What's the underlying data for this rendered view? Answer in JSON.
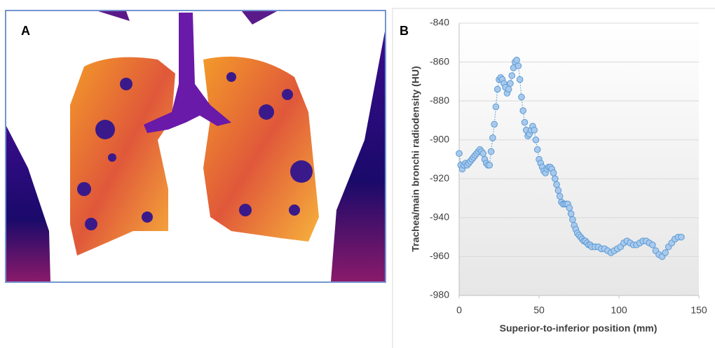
{
  "panel_labels": [
    "A",
    "B"
  ],
  "chart_data": {
    "type": "scatter",
    "x_label": "Superior-to-inferior position (mm)",
    "y_label": "Trachea/main bronchi radiodensity (HU)",
    "xlim": [
      0,
      150
    ],
    "xticks": [
      0,
      50,
      100,
      150
    ],
    "ylim": [
      -980,
      -840
    ],
    "yticks": [
      -980,
      -960,
      -940,
      -920,
      -900,
      -880,
      -860,
      -840
    ],
    "grid": true,
    "color": "#5b9bd5",
    "x": [
      0,
      1,
      2,
      3,
      4,
      5,
      6,
      7,
      8,
      9,
      10,
      11,
      12,
      13,
      14,
      15,
      16,
      17,
      18,
      19,
      20,
      21,
      22,
      23,
      24,
      25,
      26,
      27,
      28,
      29,
      30,
      31,
      32,
      33,
      34,
      35,
      36,
      37,
      38,
      39,
      40,
      41,
      42,
      43,
      44,
      45,
      46,
      47,
      48,
      49,
      50,
      51,
      52,
      53,
      54,
      55,
      56,
      57,
      58,
      59,
      60,
      61,
      62,
      63,
      64,
      65,
      66,
      67,
      68,
      69,
      70,
      71,
      72,
      73,
      74,
      75,
      76,
      77,
      78,
      79,
      80,
      81,
      82,
      83,
      85,
      87,
      89,
      91,
      93,
      95,
      97,
      99,
      101,
      103,
      105,
      107,
      109,
      111,
      113,
      115,
      117,
      119,
      121,
      123,
      125,
      127,
      129,
      131,
      133,
      135,
      137,
      139
    ],
    "y": [
      -907,
      -913,
      -915,
      -913,
      -912,
      -913,
      -912,
      -911,
      -910,
      -909,
      -908,
      -907,
      -906,
      -905,
      -906,
      -907,
      -910,
      -912,
      -913,
      -913,
      -906,
      -899,
      -892,
      -883,
      -874,
      -869,
      -868,
      -869,
      -871,
      -873,
      -876,
      -874,
      -871,
      -867,
      -863,
      -860,
      -859,
      -862,
      -869,
      -878,
      -885,
      -891,
      -895,
      -898,
      -897,
      -895,
      -893,
      -895,
      -900,
      -905,
      -910,
      -912,
      -914,
      -916,
      -917,
      -915,
      -914,
      -914,
      -915,
      -917,
      -920,
      -923,
      -926,
      -929,
      -932,
      -933,
      -933,
      -933,
      -933,
      -935,
      -938,
      -941,
      -944,
      -946,
      -948,
      -949,
      -950,
      -951,
      -952,
      -952,
      -953,
      -954,
      -954,
      -955,
      -955,
      -955,
      -956,
      -956,
      -957,
      -958,
      -957,
      -956,
      -955,
      -953,
      -952,
      -953,
      -954,
      -954,
      -953,
      -952,
      -952,
      -953,
      -954,
      -957,
      -959,
      -960,
      -958,
      -955,
      -953,
      -951,
      -950,
      -950
    ]
  }
}
